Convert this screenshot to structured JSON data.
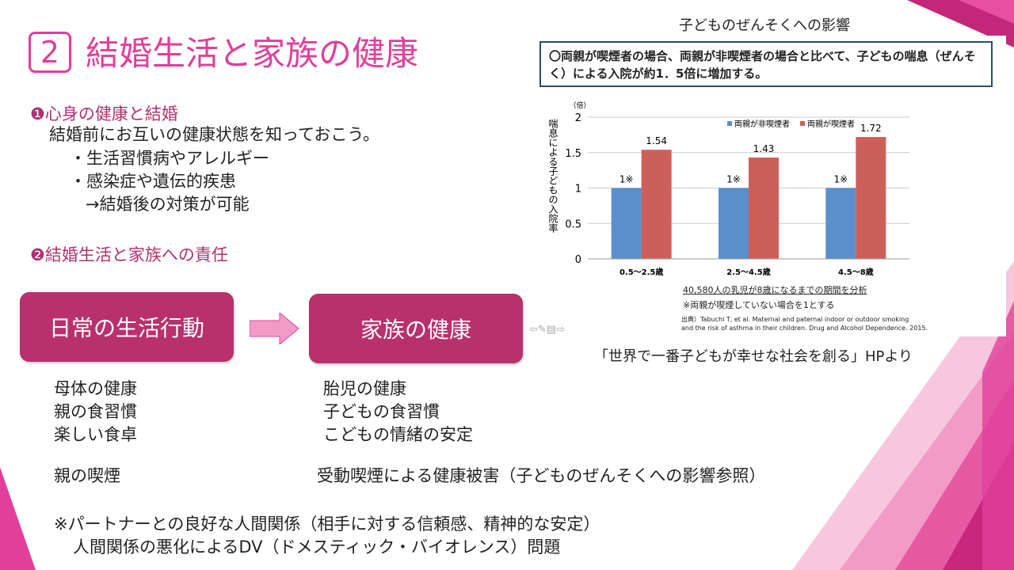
{
  "slide": {
    "number": "2",
    "title": "結婚生活と家族の健康"
  },
  "section1": {
    "heading": "❶心身の健康と結婚",
    "lines": [
      "結婚前にお互いの健康状態を知っておこう。",
      "・生活習慣病やアレルギー",
      "・感染症や遺伝的疾患",
      "→結婚後の対策が可能"
    ]
  },
  "section2": {
    "heading": "❷結婚生活と家族への責任"
  },
  "flow": {
    "left_box": "日常の生活行動",
    "right_box": "家族の健康",
    "left_items": [
      "母体の健康",
      "親の食習慣",
      "楽しい食卓"
    ],
    "right_items": [
      "胎児の健康",
      "子どもの食習慣",
      "こどもの情緒の安定"
    ],
    "smoke_left": "親の喫煙",
    "smoke_right": "受動喫煙による健康被害（子どものぜんそくへの影響参照）"
  },
  "notes": [
    "※パートナーとの良好な人間関係（相手に対する信頼感、精神的な安定）",
    "人間関係の悪化によるDV（ドメスティック・バイオレンス）問題"
  ],
  "chart_caption": {
    "title": "子どものぜんそくへの影響",
    "box": "〇両親が喫煙者の場合、両親が非喫煙者の場合と比べて、子どもの喘息（ぜんそく）による入院が約1．5倍に増加する。",
    "analysis": "40,580人の乳児が8歳になるまでの期間を分析",
    "footnote": "※両親が喫煙していない場合を1とする",
    "source1": "出典）Tabuchi T, et al. Maternal and paternal indoor or outdoor smoking",
    "source2": "and the risk of asthma in their children. Drug and  Alcohol Dependence. 2015.",
    "credit": "「世界で一番子どもが幸せな社会を創る」HPより"
  },
  "chart_data": {
    "type": "bar",
    "categories": [
      "0.5〜2.5歳",
      "2.5〜4.5歳",
      "4.5〜8歳"
    ],
    "series": [
      {
        "name": "両親が非喫煙者",
        "values": [
          1,
          1,
          1
        ],
        "labels": [
          "1※",
          "1※",
          "1※"
        ],
        "color": "#5b8fc9"
      },
      {
        "name": "両親が喫煙者",
        "values": [
          1.54,
          1.43,
          1.72
        ],
        "labels": [
          "1.54",
          "1.43",
          "1.72"
        ],
        "color": "#cd5f5a"
      }
    ],
    "ylabel": "喘息による子どもの入院率",
    "yunit": "（倍）",
    "ylim": [
      0,
      2
    ],
    "yticks": [
      "0",
      "0.5",
      "1",
      "1.5",
      "2"
    ],
    "legend": "top-right",
    "grid": true
  },
  "colors": {
    "accent": "#e0409a",
    "box": "#b8306c"
  }
}
